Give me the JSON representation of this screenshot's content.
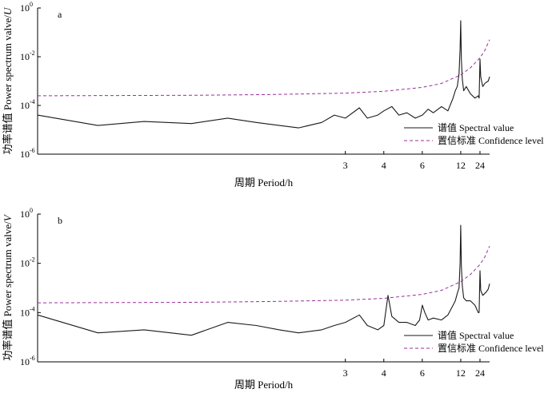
{
  "colors": {
    "spectral": "#1a1a1a",
    "confidence": "#9b2f9b",
    "axis": "#000000"
  },
  "chart_data": [
    {
      "type": "line",
      "panel_label": "a",
      "xlabel": "周期 Period/h",
      "ylabel": "功率谱值 Power spectrum valve/",
      "ylabel_var": "U",
      "yscale": "log",
      "ylim": [
        1e-06,
        1
      ],
      "yticks": [
        {
          "base": "10",
          "exp": "-6",
          "value": 1e-06
        },
        {
          "base": "10",
          "exp": "-4",
          "value": 0.0001
        },
        {
          "base": "10",
          "exp": "-2",
          "value": 0.01
        },
        {
          "base": "10",
          "exp": "0",
          "value": 1
        }
      ],
      "xscale": "reciprocal",
      "xlim_period_h": [
        1.0,
        48.0
      ],
      "xticks": [
        "3",
        "4",
        "6",
        "12",
        "24"
      ],
      "legend": [
        "谱值 Spectral value",
        "置信标准 Confidence level"
      ],
      "legend_position": "lower-right",
      "series": [
        {
          "name": "谱值 Spectral value",
          "style": "solid",
          "x_period_h": [
            1.0,
            1.15,
            1.3,
            1.5,
            1.7,
            1.9,
            2.1,
            2.3,
            2.6,
            2.8,
            3.0,
            3.3,
            3.5,
            3.8,
            4.0,
            4.3,
            4.6,
            5.0,
            5.5,
            6.0,
            6.5,
            7.0,
            8.0,
            9.0,
            10.0,
            10.5,
            11.0,
            11.5,
            11.8,
            12.0,
            12.2,
            12.5,
            13.0,
            14.0,
            16.0,
            19.0,
            22.0,
            23.0,
            24.0,
            25.0,
            28.0,
            32.0,
            36.0,
            42.0,
            48.0
          ],
          "y": [
            4e-05,
            1.5e-05,
            2.2e-05,
            1.8e-05,
            3e-05,
            2e-05,
            1.5e-05,
            1.2e-05,
            2e-05,
            4e-05,
            3e-05,
            8e-05,
            3e-05,
            4e-05,
            6e-05,
            9e-05,
            4e-05,
            5e-05,
            3e-05,
            4e-05,
            7e-05,
            5e-05,
            9e-05,
            6e-05,
            0.0002,
            0.0004,
            0.0006,
            0.002,
            0.02,
            0.3,
            0.008,
            0.0012,
            0.0004,
            0.0006,
            0.0003,
            0.0002,
            0.00025,
            0.0002,
            0.008,
            0.0015,
            0.0006,
            0.0008,
            0.0009,
            0.001,
            0.0015
          ]
        },
        {
          "name": "置信标准 Confidence level",
          "style": "dashed",
          "x_period_h": [
            1.0,
            1.5,
            2.0,
            3.0,
            4.0,
            6.0,
            8.0,
            12.0,
            16.0,
            24.0,
            32.0,
            48.0
          ],
          "y": [
            0.00025,
            0.00026,
            0.00028,
            0.00032,
            0.00038,
            0.00055,
            0.0008,
            0.0018,
            0.0035,
            0.009,
            0.018,
            0.05
          ]
        }
      ]
    },
    {
      "type": "line",
      "panel_label": "b",
      "xlabel": "周期 Period/h",
      "ylabel": "功率谱值 Power spectrum valve/",
      "ylabel_var": "V",
      "yscale": "log",
      "ylim": [
        1e-06,
        1
      ],
      "yticks": [
        {
          "base": "10",
          "exp": "-6",
          "value": 1e-06
        },
        {
          "base": "10",
          "exp": "-4",
          "value": 0.0001
        },
        {
          "base": "10",
          "exp": "-2",
          "value": 0.01
        },
        {
          "base": "10",
          "exp": "0",
          "value": 1
        }
      ],
      "xscale": "reciprocal",
      "xlim_period_h": [
        1.0,
        48.0
      ],
      "xticks": [
        "3",
        "4",
        "6",
        "12",
        "24"
      ],
      "legend": [
        "谱值 Spectral value",
        "置信标准 Confidence level"
      ],
      "legend_position": "lower-right",
      "series": [
        {
          "name": "谱值 Spectral value",
          "style": "solid",
          "x_period_h": [
            1.0,
            1.15,
            1.3,
            1.5,
            1.7,
            1.9,
            2.1,
            2.3,
            2.6,
            2.8,
            3.0,
            3.3,
            3.5,
            3.8,
            4.0,
            4.15,
            4.3,
            4.6,
            5.0,
            5.5,
            5.8,
            6.0,
            6.2,
            6.5,
            7.0,
            8.0,
            9.0,
            10.0,
            10.5,
            11.0,
            11.5,
            11.8,
            12.0,
            12.2,
            12.5,
            13.0,
            14.0,
            16.0,
            19.0,
            22.0,
            23.0,
            24.0,
            25.0,
            28.0,
            32.0,
            36.0,
            42.0,
            48.0
          ],
          "y": [
            8e-05,
            1.5e-05,
            2e-05,
            1.2e-05,
            4e-05,
            3e-05,
            2e-05,
            1.5e-05,
            2e-05,
            3e-05,
            4e-05,
            8e-05,
            3e-05,
            2e-05,
            3e-05,
            0.0005,
            7e-05,
            4e-05,
            4e-05,
            3e-05,
            5e-05,
            0.0002,
            0.0001,
            5e-05,
            6e-05,
            5e-05,
            8e-05,
            0.0002,
            0.0003,
            0.0006,
            0.001,
            0.01,
            0.35,
            0.008,
            0.0012,
            0.0004,
            0.0003,
            0.0003,
            0.0002,
            0.0001,
            0.0001,
            0.005,
            0.0008,
            0.0005,
            0.0006,
            0.0007,
            0.0009,
            0.0015
          ]
        },
        {
          "name": "置信标准 Confidence level",
          "style": "dashed",
          "x_period_h": [
            1.0,
            1.5,
            2.0,
            3.0,
            4.0,
            6.0,
            8.0,
            12.0,
            16.0,
            24.0,
            32.0,
            48.0
          ],
          "y": [
            0.00025,
            0.00026,
            0.00028,
            0.00032,
            0.00038,
            0.00055,
            0.0008,
            0.0018,
            0.0035,
            0.009,
            0.018,
            0.05
          ]
        }
      ]
    }
  ]
}
